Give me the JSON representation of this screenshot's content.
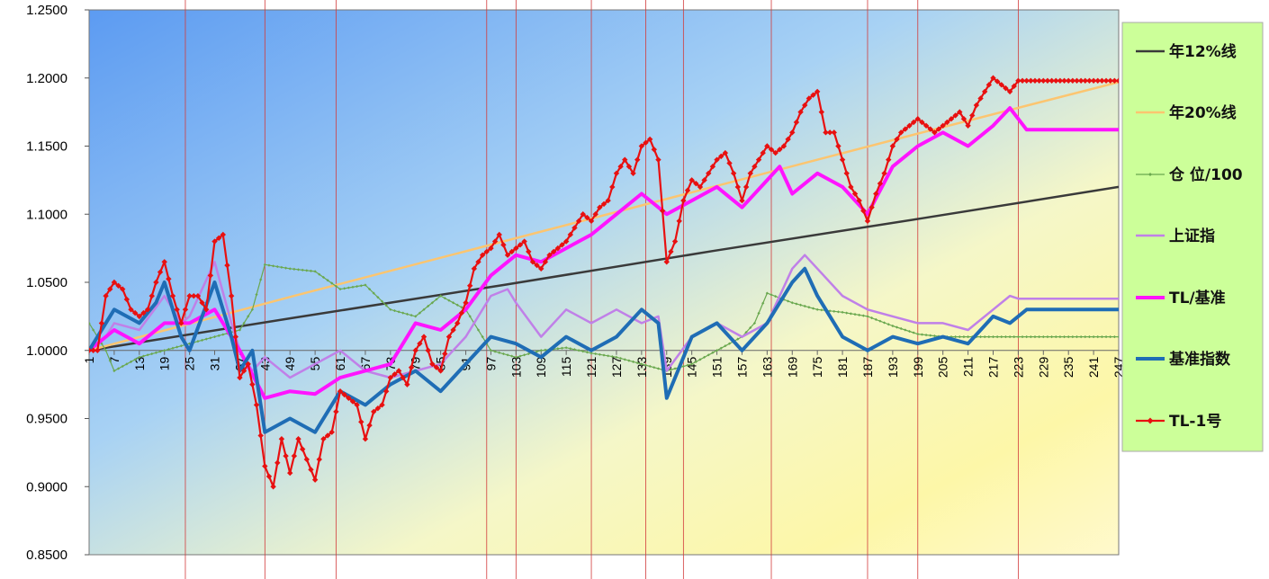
{
  "chart_data": {
    "type": "line",
    "title": "",
    "xlabel": "",
    "ylabel": "",
    "ylim": [
      0.85,
      1.25
    ],
    "x_range": [
      1,
      247
    ],
    "y_ticks": [
      "0.8500",
      "0.9000",
      "0.9500",
      "1.0000",
      "1.0500",
      "1.1000",
      "1.1500",
      "1.2000",
      "1.2500"
    ],
    "x_ticks": [
      "1",
      "7",
      "13",
      "19",
      "25",
      "31",
      "37",
      "43",
      "49",
      "55",
      "61",
      "67",
      "73",
      "79",
      "85",
      "91",
      "97",
      "103",
      "109",
      "115",
      "121",
      "127",
      "133",
      "139",
      "145",
      "151",
      "157",
      "163",
      "169",
      "175",
      "181",
      "187",
      "193",
      "199",
      "205",
      "211",
      "217",
      "223",
      "229",
      "235",
      "241",
      "247"
    ],
    "vertical_markers": [
      24,
      43,
      60,
      96,
      103,
      121,
      134,
      143,
      164,
      187,
      199,
      223
    ],
    "grid": false,
    "legend_position": "right",
    "series": [
      {
        "name": "年12%线",
        "color": "#3a3a3a",
        "style": "line",
        "points": [
          [
            1,
            1.0
          ],
          [
            50,
            1.024
          ],
          [
            100,
            1.048
          ],
          [
            150,
            1.073
          ],
          [
            200,
            1.097
          ],
          [
            247,
            1.12
          ]
        ]
      },
      {
        "name": "年20%线",
        "color": "#fcc570",
        "style": "line",
        "points": [
          [
            1,
            1.0
          ],
          [
            50,
            1.04
          ],
          [
            100,
            1.08
          ],
          [
            150,
            1.12
          ],
          [
            200,
            1.16
          ],
          [
            247,
            1.197
          ]
        ]
      },
      {
        "name": "仓 位/100",
        "color": "#6aa84f",
        "style": "marker-line",
        "points": [
          [
            1,
            1.02
          ],
          [
            5,
            1.0
          ],
          [
            7,
            0.985
          ],
          [
            13,
            0.995
          ],
          [
            19,
            1.0
          ],
          [
            25,
            1.005
          ],
          [
            31,
            1.01
          ],
          [
            37,
            1.015
          ],
          [
            40,
            1.03
          ],
          [
            43,
            1.063
          ],
          [
            49,
            1.06
          ],
          [
            55,
            1.058
          ],
          [
            61,
            1.045
          ],
          [
            67,
            1.048
          ],
          [
            73,
            1.03
          ],
          [
            79,
            1.025
          ],
          [
            85,
            1.04
          ],
          [
            91,
            1.03
          ],
          [
            97,
            1.0
          ],
          [
            103,
            0.995
          ],
          [
            109,
            1.0
          ],
          [
            115,
            1.002
          ],
          [
            121,
            0.998
          ],
          [
            127,
            0.995
          ],
          [
            133,
            0.99
          ],
          [
            139,
            0.985
          ],
          [
            145,
            0.99
          ],
          [
            151,
            1.0
          ],
          [
            157,
            1.01
          ],
          [
            160,
            1.02
          ],
          [
            163,
            1.042
          ],
          [
            169,
            1.035
          ],
          [
            175,
            1.03
          ],
          [
            181,
            1.028
          ],
          [
            187,
            1.025
          ],
          [
            193,
            1.018
          ],
          [
            199,
            1.012
          ],
          [
            205,
            1.01
          ],
          [
            211,
            1.01
          ],
          [
            217,
            1.01
          ],
          [
            223,
            1.01
          ],
          [
            247,
            1.01
          ]
        ]
      },
      {
        "name": "上证指",
        "color": "#c080e8",
        "style": "line",
        "points": [
          [
            1,
            1.0
          ],
          [
            5,
            1.01
          ],
          [
            7,
            1.02
          ],
          [
            13,
            1.015
          ],
          [
            19,
            1.04
          ],
          [
            23,
            1.02
          ],
          [
            25,
            1.025
          ],
          [
            31,
            1.065
          ],
          [
            35,
            1.02
          ],
          [
            37,
            1.0
          ],
          [
            40,
            0.985
          ],
          [
            43,
            0.995
          ],
          [
            49,
            0.98
          ],
          [
            55,
            0.99
          ],
          [
            61,
            1.0
          ],
          [
            67,
            0.985
          ],
          [
            73,
            0.98
          ],
          [
            79,
            0.985
          ],
          [
            85,
            0.99
          ],
          [
            91,
            1.01
          ],
          [
            97,
            1.04
          ],
          [
            101,
            1.045
          ],
          [
            103,
            1.035
          ],
          [
            109,
            1.01
          ],
          [
            115,
            1.03
          ],
          [
            121,
            1.02
          ],
          [
            127,
            1.03
          ],
          [
            133,
            1.02
          ],
          [
            137,
            1.025
          ],
          [
            139,
            0.985
          ],
          [
            145,
            1.01
          ],
          [
            151,
            1.02
          ],
          [
            157,
            1.01
          ],
          [
            163,
            1.02
          ],
          [
            169,
            1.06
          ],
          [
            172,
            1.07
          ],
          [
            175,
            1.06
          ],
          [
            181,
            1.04
          ],
          [
            187,
            1.03
          ],
          [
            193,
            1.025
          ],
          [
            199,
            1.02
          ],
          [
            205,
            1.02
          ],
          [
            211,
            1.015
          ],
          [
            217,
            1.03
          ],
          [
            221,
            1.04
          ],
          [
            223,
            1.038
          ],
          [
            247,
            1.038
          ]
        ]
      },
      {
        "name": "TL/基准",
        "color": "#ff14ff",
        "style": "thick-line",
        "points": [
          [
            1,
            1.0
          ],
          [
            7,
            1.015
          ],
          [
            13,
            1.005
          ],
          [
            19,
            1.02
          ],
          [
            25,
            1.02
          ],
          [
            31,
            1.03
          ],
          [
            37,
            1.0
          ],
          [
            43,
            0.965
          ],
          [
            49,
            0.97
          ],
          [
            55,
            0.968
          ],
          [
            61,
            0.98
          ],
          [
            67,
            0.985
          ],
          [
            73,
            0.99
          ],
          [
            79,
            1.02
          ],
          [
            85,
            1.015
          ],
          [
            91,
            1.03
          ],
          [
            97,
            1.055
          ],
          [
            103,
            1.07
          ],
          [
            109,
            1.065
          ],
          [
            115,
            1.075
          ],
          [
            121,
            1.085
          ],
          [
            127,
            1.1
          ],
          [
            133,
            1.115
          ],
          [
            139,
            1.1
          ],
          [
            145,
            1.11
          ],
          [
            151,
            1.12
          ],
          [
            157,
            1.105
          ],
          [
            163,
            1.125
          ],
          [
            166,
            1.135
          ],
          [
            169,
            1.115
          ],
          [
            175,
            1.13
          ],
          [
            181,
            1.12
          ],
          [
            187,
            1.1
          ],
          [
            193,
            1.135
          ],
          [
            199,
            1.15
          ],
          [
            205,
            1.16
          ],
          [
            211,
            1.15
          ],
          [
            217,
            1.165
          ],
          [
            221,
            1.178
          ],
          [
            225,
            1.162
          ],
          [
            247,
            1.162
          ]
        ]
      },
      {
        "name": "基准指数",
        "color": "#1f6db5",
        "style": "thick-line",
        "points": [
          [
            1,
            1.0
          ],
          [
            5,
            1.02
          ],
          [
            7,
            1.03
          ],
          [
            13,
            1.02
          ],
          [
            17,
            1.035
          ],
          [
            19,
            1.05
          ],
          [
            23,
            1.01
          ],
          [
            25,
            1.0
          ],
          [
            31,
            1.05
          ],
          [
            35,
            1.01
          ],
          [
            37,
            0.985
          ],
          [
            40,
            1.0
          ],
          [
            43,
            0.94
          ],
          [
            49,
            0.95
          ],
          [
            55,
            0.94
          ],
          [
            61,
            0.97
          ],
          [
            67,
            0.96
          ],
          [
            73,
            0.975
          ],
          [
            79,
            0.985
          ],
          [
            85,
            0.97
          ],
          [
            91,
            0.99
          ],
          [
            97,
            1.01
          ],
          [
            103,
            1.005
          ],
          [
            109,
            0.995
          ],
          [
            115,
            1.01
          ],
          [
            121,
            1.0
          ],
          [
            127,
            1.01
          ],
          [
            133,
            1.03
          ],
          [
            137,
            1.02
          ],
          [
            139,
            0.965
          ],
          [
            145,
            1.01
          ],
          [
            151,
            1.02
          ],
          [
            157,
            1.0
          ],
          [
            163,
            1.02
          ],
          [
            169,
            1.05
          ],
          [
            172,
            1.06
          ],
          [
            175,
            1.04
          ],
          [
            181,
            1.01
          ],
          [
            187,
            1.0
          ],
          [
            193,
            1.01
          ],
          [
            199,
            1.005
          ],
          [
            205,
            1.01
          ],
          [
            211,
            1.005
          ],
          [
            217,
            1.025
          ],
          [
            221,
            1.02
          ],
          [
            225,
            1.03
          ],
          [
            247,
            1.03
          ]
        ]
      },
      {
        "name": "TL-1号",
        "color": "#e81010",
        "style": "marker-line",
        "points": [
          [
            1,
            1.0
          ],
          [
            3,
            1.0
          ],
          [
            5,
            1.04
          ],
          [
            7,
            1.05
          ],
          [
            9,
            1.045
          ],
          [
            11,
            1.03
          ],
          [
            13,
            1.025
          ],
          [
            15,
            1.03
          ],
          [
            17,
            1.05
          ],
          [
            19,
            1.065
          ],
          [
            21,
            1.04
          ],
          [
            23,
            1.02
          ],
          [
            25,
            1.04
          ],
          [
            27,
            1.04
          ],
          [
            29,
            1.03
          ],
          [
            31,
            1.08
          ],
          [
            33,
            1.085
          ],
          [
            35,
            1.04
          ],
          [
            37,
            0.98
          ],
          [
            39,
            0.99
          ],
          [
            41,
            0.96
          ],
          [
            43,
            0.915
          ],
          [
            45,
            0.9
          ],
          [
            47,
            0.935
          ],
          [
            49,
            0.91
          ],
          [
            51,
            0.935
          ],
          [
            53,
            0.92
          ],
          [
            55,
            0.905
          ],
          [
            57,
            0.935
          ],
          [
            59,
            0.94
          ],
          [
            61,
            0.97
          ],
          [
            63,
            0.965
          ],
          [
            65,
            0.96
          ],
          [
            67,
            0.935
          ],
          [
            69,
            0.955
          ],
          [
            71,
            0.96
          ],
          [
            73,
            0.98
          ],
          [
            75,
            0.985
          ],
          [
            77,
            0.975
          ],
          [
            79,
            1.0
          ],
          [
            81,
            1.01
          ],
          [
            83,
            0.99
          ],
          [
            85,
            0.985
          ],
          [
            87,
            1.01
          ],
          [
            89,
            1.02
          ],
          [
            91,
            1.035
          ],
          [
            93,
            1.06
          ],
          [
            95,
            1.07
          ],
          [
            97,
            1.075
          ],
          [
            99,
            1.085
          ],
          [
            101,
            1.07
          ],
          [
            103,
            1.075
          ],
          [
            105,
            1.08
          ],
          [
            107,
            1.065
          ],
          [
            109,
            1.06
          ],
          [
            111,
            1.07
          ],
          [
            113,
            1.075
          ],
          [
            115,
            1.08
          ],
          [
            117,
            1.09
          ],
          [
            119,
            1.1
          ],
          [
            121,
            1.095
          ],
          [
            123,
            1.105
          ],
          [
            125,
            1.11
          ],
          [
            127,
            1.13
          ],
          [
            129,
            1.14
          ],
          [
            131,
            1.13
          ],
          [
            133,
            1.15
          ],
          [
            135,
            1.155
          ],
          [
            137,
            1.14
          ],
          [
            139,
            1.065
          ],
          [
            141,
            1.08
          ],
          [
            143,
            1.11
          ],
          [
            145,
            1.125
          ],
          [
            147,
            1.12
          ],
          [
            149,
            1.13
          ],
          [
            151,
            1.14
          ],
          [
            153,
            1.145
          ],
          [
            155,
            1.13
          ],
          [
            157,
            1.11
          ],
          [
            159,
            1.13
          ],
          [
            161,
            1.14
          ],
          [
            163,
            1.15
          ],
          [
            165,
            1.145
          ],
          [
            167,
            1.15
          ],
          [
            169,
            1.16
          ],
          [
            171,
            1.175
          ],
          [
            173,
            1.185
          ],
          [
            175,
            1.19
          ],
          [
            177,
            1.16
          ],
          [
            179,
            1.16
          ],
          [
            181,
            1.14
          ],
          [
            183,
            1.12
          ],
          [
            185,
            1.11
          ],
          [
            187,
            1.095
          ],
          [
            189,
            1.115
          ],
          [
            191,
            1.13
          ],
          [
            193,
            1.15
          ],
          [
            195,
            1.16
          ],
          [
            197,
            1.165
          ],
          [
            199,
            1.17
          ],
          [
            201,
            1.165
          ],
          [
            203,
            1.16
          ],
          [
            205,
            1.165
          ],
          [
            207,
            1.17
          ],
          [
            209,
            1.175
          ],
          [
            211,
            1.165
          ],
          [
            213,
            1.18
          ],
          [
            215,
            1.19
          ],
          [
            217,
            1.2
          ],
          [
            219,
            1.195
          ],
          [
            221,
            1.19
          ],
          [
            223,
            1.198
          ],
          [
            247,
            1.198
          ]
        ]
      }
    ]
  }
}
